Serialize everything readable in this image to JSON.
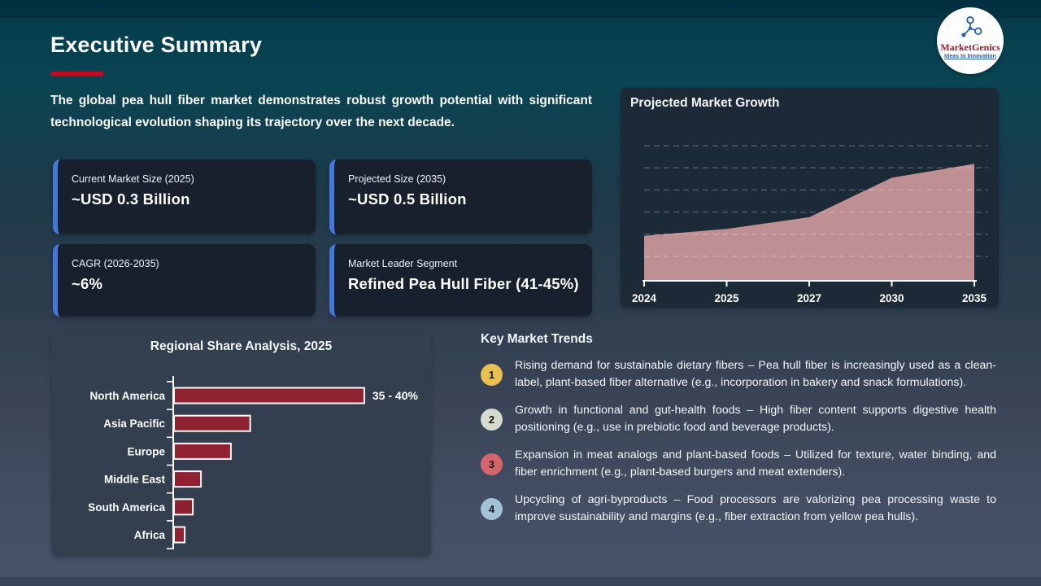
{
  "slide": {
    "title": "Executive Summary",
    "intro": "The global pea hull fiber market demonstrates robust growth potential with significant technological evolution shaping its trajectory over the next decade."
  },
  "logo": {
    "brand": "MarketGenics",
    "tagline": "Ideas to Innovation"
  },
  "stat_cards": [
    {
      "label": "Current Market Size (2025)",
      "value": "~USD 0.3 Billion"
    },
    {
      "label": "Projected Size (2035)",
      "value": "~USD 0.5 Billion"
    },
    {
      "label": "CAGR (2026-2035)",
      "value": "~6%"
    },
    {
      "label": "Market Leader Segment",
      "value": "Refined Pea Hull Fiber (41-45%)"
    }
  ],
  "chart_data": [
    {
      "id": "projected-market-growth",
      "type": "area",
      "title": "Projected Market Growth",
      "x": [
        2024,
        2025,
        2027,
        2030,
        2035
      ],
      "x_tick_labels": [
        "2024",
        "2025",
        "2027",
        "2030",
        "2035"
      ],
      "values": [
        0.19,
        0.22,
        0.27,
        0.44,
        0.5
      ],
      "ylim": [
        0,
        0.55
      ],
      "xlabel": "",
      "ylabel": "",
      "unit": "USD Billion (estimated; y-axis unlabeled)",
      "grid": "horizontal dashed, 6 lines",
      "legend": "none",
      "fill_color": "#c59598"
    },
    {
      "id": "regional-share-2025",
      "type": "bar",
      "orientation": "horizontal",
      "title": "Regional Share Analysis, 2025",
      "categories": [
        "North America",
        "Asia Pacific",
        "Europe",
        "Middle East",
        "South America",
        "Africa"
      ],
      "values": [
        37.5,
        15.0,
        11.2,
        5.3,
        3.7,
        2.1
      ],
      "unit": "% market share (estimated from bar lengths; only North America labeled)",
      "xlim": [
        0,
        42
      ],
      "annotations": [
        {
          "category": "North America",
          "text": "35 - 40%"
        }
      ],
      "bar_color": "#8e2231",
      "bar_border_color": "#ffffff",
      "grid": "off",
      "legend": "none"
    }
  ],
  "key_trends": {
    "heading": "Key Market Trends",
    "items": [
      {
        "number": "1",
        "color": "#e9c150",
        "text": "Rising demand for sustainable dietary fibers – Pea hull fiber is increasingly used as a clean-label, plant-based fiber alternative (e.g., incorporation in bakery and snack formulations)."
      },
      {
        "number": "2",
        "color": "#d6dbce",
        "text": "Growth in functional and gut-health foods – High fiber content supports digestive health positioning (e.g., use in prebiotic food and beverage products)."
      },
      {
        "number": "3",
        "color": "#d5646c",
        "text": "Expansion in meat analogs and plant-based foods – Utilized for texture, water binding, and fiber enrichment (e.g., plant-based burgers and meat extenders)."
      },
      {
        "number": "4",
        "color": "#a2c2d8",
        "text": "Upcycling of agri-byproducts – Food processors are valorizing pea processing waste to improve sustainability and margins (e.g., fiber extraction from yellow pea hulls)."
      }
    ]
  },
  "colors": {
    "accent_red": "#c60b20",
    "card_accent_blue": "#4577dd",
    "card_background": "#17202c",
    "growth_panel_background": "#1c2a37",
    "regional_panel_background": "#333e4e",
    "area_fill": "#c59598",
    "bar_fill": "#8e2231"
  }
}
